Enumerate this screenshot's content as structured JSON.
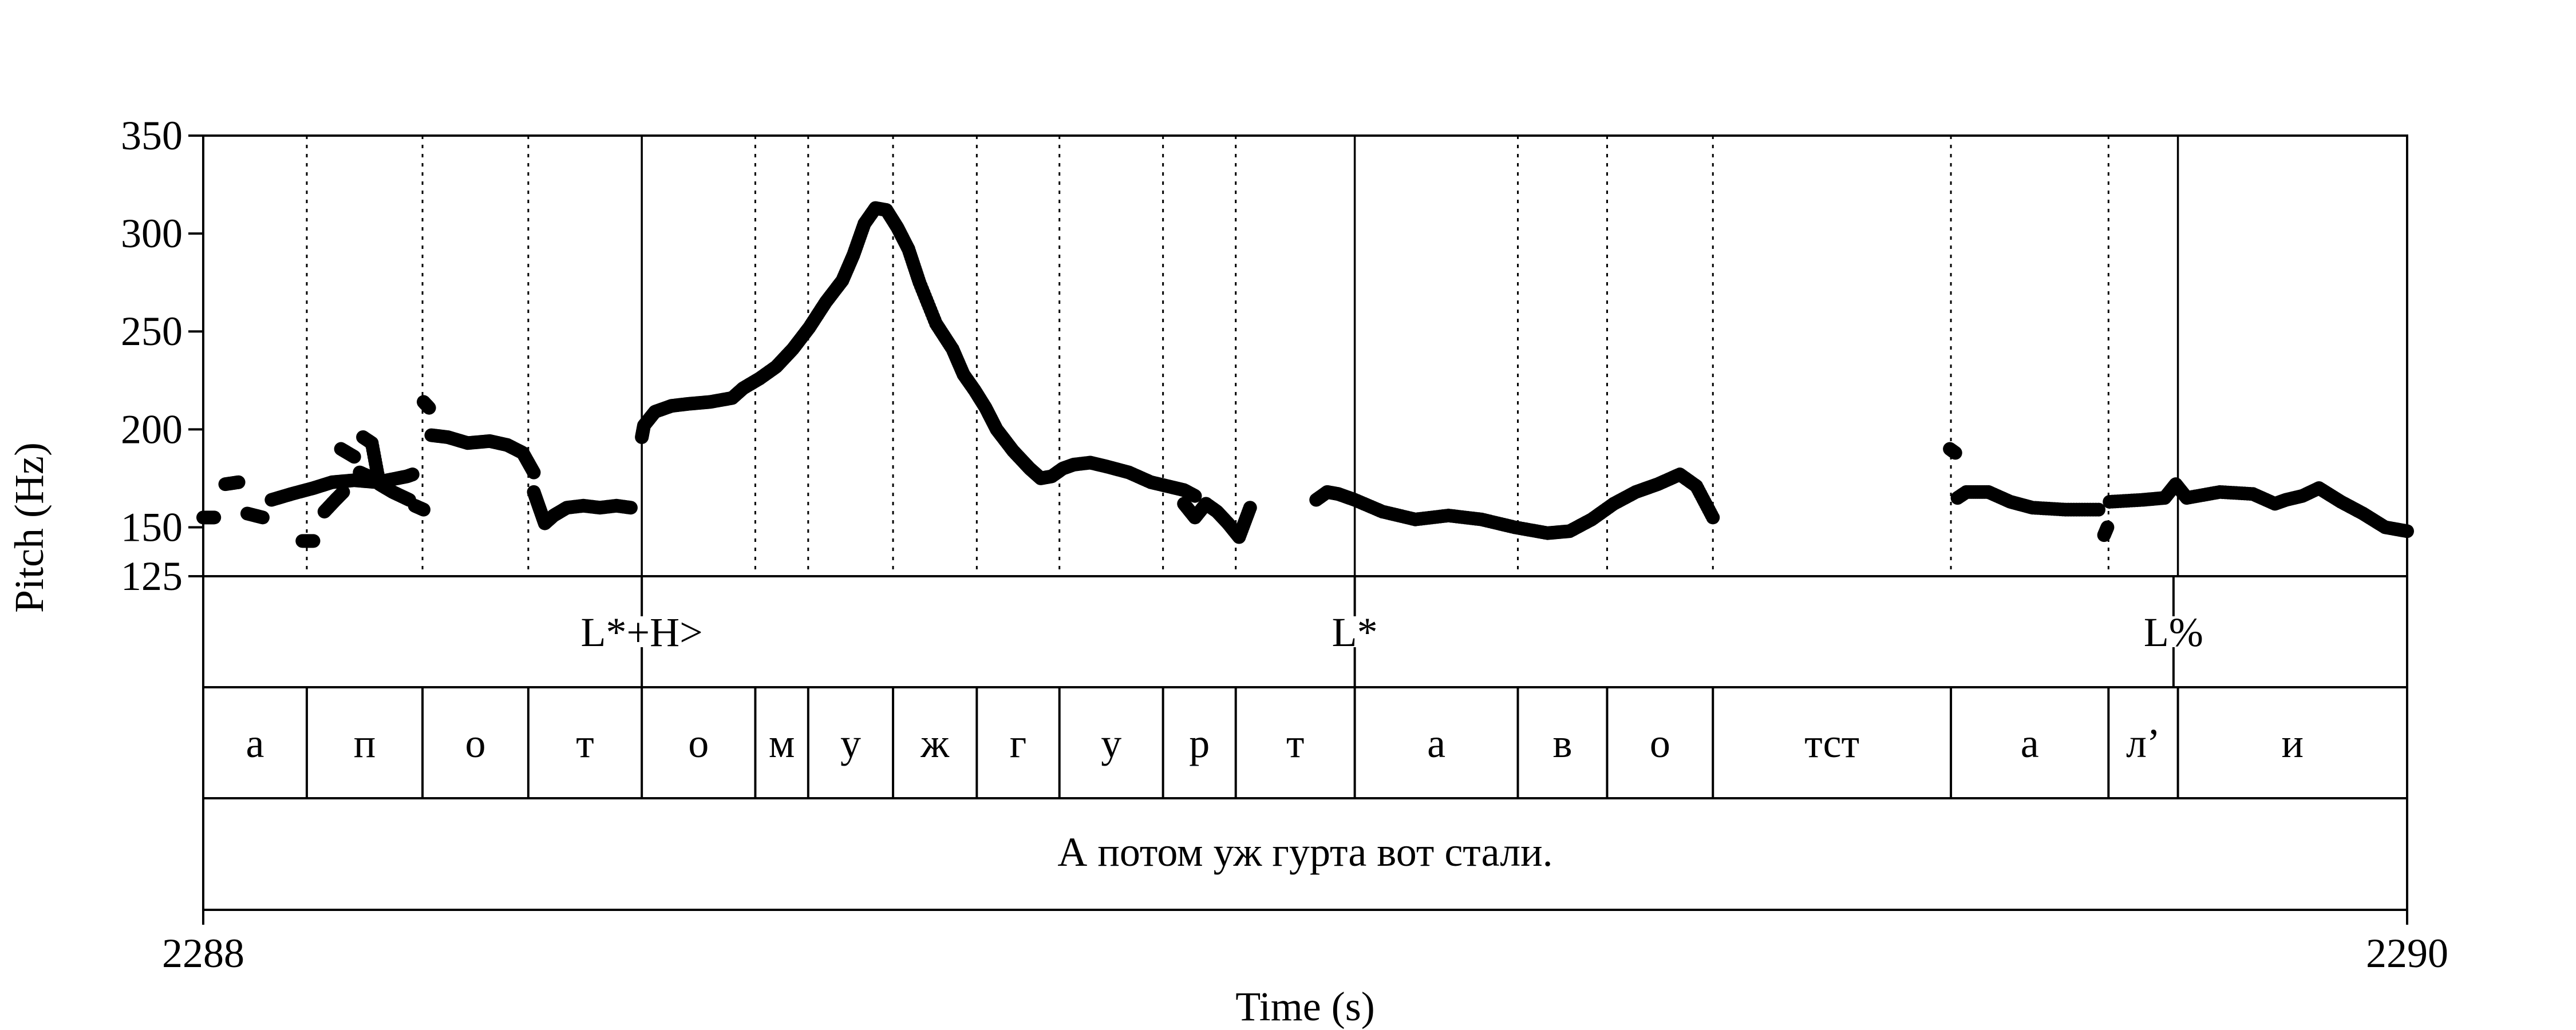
{
  "chart_data": {
    "type": "scatter",
    "xlabel": "Time (s)",
    "ylabel": "Pitch (Hz)",
    "xlim": [
      2288,
      2290
    ],
    "ylim": [
      125,
      350
    ],
    "x_ticks": [
      "2288",
      "2290"
    ],
    "y_ticks": [
      "350",
      "300",
      "250",
      "200",
      "150",
      "125"
    ],
    "grid": false,
    "tones_tier": [
      {
        "label": "L*+H>",
        "t": 2288.398
      },
      {
        "label": "L*",
        "t": 2289.045
      },
      {
        "label": "L%",
        "t": 2289.788
      }
    ],
    "segments_tier": [
      {
        "label": "а",
        "start": 2288.0,
        "end": 2288.094
      },
      {
        "label": "п",
        "start": 2288.094,
        "end": 2288.199
      },
      {
        "label": "о",
        "start": 2288.199,
        "end": 2288.295
      },
      {
        "label": "т",
        "start": 2288.295,
        "end": 2288.398
      },
      {
        "label": "о",
        "start": 2288.398,
        "end": 2288.501
      },
      {
        "label": "м",
        "start": 2288.501,
        "end": 2288.549
      },
      {
        "label": "у",
        "start": 2288.549,
        "end": 2288.626
      },
      {
        "label": "ж",
        "start": 2288.626,
        "end": 2288.702
      },
      {
        "label": "г",
        "start": 2288.702,
        "end": 2288.777
      },
      {
        "label": "у",
        "start": 2288.777,
        "end": 2288.871
      },
      {
        "label": "р",
        "start": 2288.871,
        "end": 2288.937
      },
      {
        "label": "т",
        "start": 2288.937,
        "end": 2289.045
      },
      {
        "label": "а",
        "start": 2289.045,
        "end": 2289.193
      },
      {
        "label": "в",
        "start": 2289.193,
        "end": 2289.274
      },
      {
        "label": "о",
        "start": 2289.274,
        "end": 2289.37
      },
      {
        "label": "тст",
        "start": 2289.37,
        "end": 2289.586
      },
      {
        "label": "а",
        "start": 2289.586,
        "end": 2289.729
      },
      {
        "label": "л’",
        "start": 2289.729,
        "end": 2289.792
      },
      {
        "label": "и",
        "start": 2289.792,
        "end": 2290.0
      }
    ],
    "sentence_tier": "А потом уж гурта вот стали.",
    "pitch_contour": [
      {
        "t": [
          2288.0,
          2288.01
        ],
        "hz": [
          155,
          155
        ]
      },
      {
        "t": [
          2288.02,
          2288.032
        ],
        "hz": [
          172,
          173
        ]
      },
      {
        "t": [
          2288.04,
          2288.054
        ],
        "hz": [
          157,
          155
        ]
      },
      {
        "t": [
          2288.062,
          2288.08,
          2288.1,
          2288.117,
          2288.137,
          2288.158,
          2288.176,
          2288.185,
          2288.19
        ],
        "hz": [
          164,
          167,
          170,
          173,
          174,
          173,
          175,
          176,
          177
        ]
      },
      {
        "t": [
          2288.09,
          2288.1
        ],
        "hz": [
          143,
          143
        ]
      },
      {
        "t": [
          2288.11,
          2288.12,
          2288.127
        ],
        "hz": [
          158,
          164,
          168
        ]
      },
      {
        "t": [
          2288.125,
          2288.137
        ],
        "hz": [
          190,
          186
        ]
      },
      {
        "t": [
          2288.142,
          2288.15
        ],
        "hz": [
          178,
          176
        ]
      },
      {
        "t": [
          2288.145,
          2288.153,
          2288.16,
          2288.172,
          2288.187
        ],
        "hz": [
          196,
          193,
          172,
          168,
          164
        ]
      },
      {
        "t": [
          2288.192,
          2288.2
        ],
        "hz": [
          161,
          159
        ]
      },
      {
        "t": [
          2288.2,
          2288.205
        ],
        "hz": [
          214,
          211
        ]
      },
      {
        "t": [
          2288.207,
          2288.222,
          2288.24,
          2288.26,
          2288.276,
          2288.29,
          2288.3
        ],
        "hz": [
          197,
          196,
          193,
          194,
          192,
          188,
          178
        ]
      },
      {
        "t": [
          2288.3,
          2288.305,
          2288.31,
          2288.318,
          2288.33,
          2288.345,
          2288.36,
          2288.375,
          2288.388
        ],
        "hz": [
          168,
          160,
          152,
          156,
          160,
          161,
          160,
          161,
          160
        ]
      },
      {
        "t": [
          2288.398,
          2288.4,
          2288.41,
          2288.425,
          2288.44,
          2288.46,
          2288.48,
          2288.49,
          2288.505,
          2288.52,
          2288.535,
          2288.55,
          2288.565,
          2288.58,
          2288.59,
          2288.6,
          2288.61,
          2288.62,
          2288.63,
          2288.64,
          2288.65,
          2288.665,
          2288.68,
          2288.69,
          2288.7,
          2288.71,
          2288.72,
          2288.735,
          2288.75,
          2288.76,
          2288.77,
          2288.78,
          2288.79,
          2288.805,
          2288.82,
          2288.84,
          2288.86,
          2288.875,
          2288.89,
          2288.9
        ],
        "hz": [
          196,
          202,
          209,
          212,
          213,
          214,
          216,
          221,
          226,
          232,
          241,
          252,
          265,
          276,
          289,
          305,
          313,
          312,
          303,
          292,
          275,
          254,
          241,
          228,
          220,
          211,
          200,
          189,
          180,
          175,
          176,
          180,
          182,
          183,
          181,
          178,
          173,
          171,
          169,
          166
        ]
      },
      {
        "t": [
          2288.89,
          2288.9,
          2288.91,
          2288.92,
          2288.93,
          2288.94,
          2288.95
        ],
        "hz": [
          162,
          155,
          162,
          158,
          152,
          145,
          160
        ]
      },
      {
        "t": [
          2289.01,
          2289.02,
          2289.03,
          2289.045,
          2289.07,
          2289.1,
          2289.13,
          2289.16,
          2289.19,
          2289.22,
          2289.24,
          2289.26,
          2289.28,
          2289.3,
          2289.32,
          2289.34,
          2289.355,
          2289.37
        ],
        "hz": [
          164,
          168,
          167,
          164,
          158,
          154,
          156,
          154,
          150,
          147,
          148,
          154,
          162,
          168,
          172,
          177,
          171,
          155
        ]
      },
      {
        "t": [
          2289.585,
          2289.59
        ],
        "hz": [
          190,
          188
        ]
      },
      {
        "t": [
          2289.592,
          2289.6,
          2289.62,
          2289.64,
          2289.66,
          2289.69,
          2289.72
        ],
        "hz": [
          165,
          168,
          168,
          163,
          160,
          159,
          159
        ]
      },
      {
        "t": [
          2289.725,
          2289.728
        ],
        "hz": [
          146,
          150
        ]
      },
      {
        "t": [
          2289.73,
          2289.76,
          2289.78,
          2289.79,
          2289.8,
          2289.83,
          2289.86,
          2289.88,
          2289.89,
          2289.905,
          2289.92,
          2289.94,
          2289.96,
          2289.98,
          2290.0
        ],
        "hz": [
          163,
          164,
          165,
          172,
          165,
          168,
          167,
          162,
          164,
          166,
          170,
          163,
          157,
          150,
          148
        ]
      }
    ]
  }
}
